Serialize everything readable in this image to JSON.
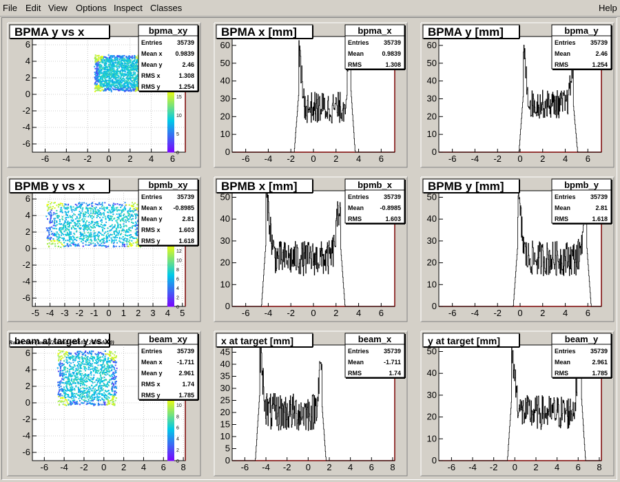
{
  "menu": {
    "file": "File",
    "edit": "Edit",
    "view": "View",
    "options": "Options",
    "inspect": "Inspect",
    "classes": "Classes",
    "help": "Help"
  },
  "canvas_title": "Raster Size (/adaql2/data2/e05102_2604.dat.0)",
  "colors": {
    "panel": "#d4d0c8",
    "frame": "#ffffff",
    "axis_frame_right": "#7a0000",
    "histogram": "#000000",
    "gradient_low": "#7d00ff",
    "gradient_mid": "#00c8e8",
    "gradient_high": "#ffff00"
  },
  "chart_data": [
    {
      "type": "heatmap",
      "title": "BPMA y vs x",
      "stats": {
        "name": "bpma_xy",
        "rows": [
          [
            "Entries",
            "35739"
          ],
          [
            "Mean x",
            "0.9839"
          ],
          [
            "Mean y",
            "2.46"
          ],
          [
            "RMS x",
            "1.308"
          ],
          [
            "RMS y",
            "1.254"
          ]
        ]
      },
      "xlim": [
        -7.2,
        7.2
      ],
      "ylim": [
        -7,
        7
      ],
      "xticks": [
        -6,
        -4,
        -2,
        0,
        2,
        4,
        6
      ],
      "yticks": [
        -6,
        -4,
        -2,
        0,
        2,
        4,
        6
      ],
      "region": {
        "x": [
          -1.3,
          3.3
        ],
        "y": [
          0.4,
          4.7
        ]
      },
      "colorbar": {
        "ticks": [
          0,
          5,
          10,
          15
        ]
      },
      "grid": true
    },
    {
      "type": "area",
      "title": "BPMA x [mm]",
      "stats": {
        "name": "bpma_x",
        "rows": [
          [
            "Entries",
            "35739"
          ],
          [
            "Mean",
            "0.9839"
          ],
          [
            "RMS",
            "1.308"
          ]
        ]
      },
      "xlim": [
        -7.2,
        7.2
      ],
      "ylim": [
        0,
        65
      ],
      "xticks": [
        -6,
        -4,
        -2,
        0,
        2,
        4,
        6
      ],
      "yticks": [
        0,
        10,
        20,
        30,
        40,
        50,
        60
      ],
      "profile": {
        "x0": -1.3,
        "x1": 3.3,
        "peak_left": 55,
        "peak_right": 62,
        "valley": 25,
        "noise": 9
      },
      "grid": false
    },
    {
      "type": "area",
      "title": "BPMA y [mm]",
      "stats": {
        "name": "bpma_y",
        "rows": [
          [
            "Entries",
            "35739"
          ],
          [
            "Mean",
            "2.46"
          ],
          [
            "RMS",
            "1.254"
          ]
        ]
      },
      "xlim": [
        -7.2,
        7.2
      ],
      "ylim": [
        0,
        65
      ],
      "xticks": [
        -6,
        -4,
        -2,
        0,
        2,
        4,
        6
      ],
      "yticks": [
        0,
        10,
        20,
        30,
        40,
        50,
        60
      ],
      "profile": {
        "x0": 0.3,
        "x1": 4.7,
        "peak_left": 56,
        "peak_right": 47,
        "valley": 27,
        "noise": 8
      },
      "grid": false
    },
    {
      "type": "heatmap",
      "title": "BPMB y vs x",
      "stats": {
        "name": "bpmb_xy",
        "rows": [
          [
            "Entries",
            "35739"
          ],
          [
            "Mean x",
            "-0.8985"
          ],
          [
            "Mean y",
            "2.81"
          ],
          [
            "RMS x",
            "1.603"
          ],
          [
            "RMS y",
            "1.618"
          ]
        ]
      },
      "xlim": [
        -5.2,
        5.2
      ],
      "ylim": [
        -7,
        7
      ],
      "xticks": [
        -5,
        -4,
        -3,
        -2,
        -1,
        0,
        1,
        2,
        3,
        4,
        5
      ],
      "yticks": [
        -6,
        -4,
        -2,
        0,
        2,
        4,
        6
      ],
      "region": {
        "x": [
          -4.2,
          2.4
        ],
        "y": [
          0.2,
          5.6
        ]
      },
      "colorbar": {
        "ticks": [
          0,
          2,
          4,
          6,
          8,
          10,
          12
        ]
      },
      "grid": true
    },
    {
      "type": "area",
      "title": "BPMB x [mm]",
      "stats": {
        "name": "bpmb_x",
        "rows": [
          [
            "Entries",
            "35739"
          ],
          [
            "Mean",
            "-0.8985"
          ],
          [
            "RMS",
            "1.603"
          ]
        ]
      },
      "xlim": [
        -7.2,
        7.2
      ],
      "ylim": [
        0,
        53
      ],
      "xticks": [
        -6,
        -4,
        -2,
        0,
        2,
        4,
        6
      ],
      "yticks": [
        0,
        10,
        20,
        30,
        40,
        50
      ],
      "profile": {
        "x0": -4.2,
        "x1": 2.4,
        "peak_left": 50,
        "peak_right": 47,
        "valley": 22,
        "noise": 8
      },
      "grid": false
    },
    {
      "type": "area",
      "title": "BPMB y [mm]",
      "stats": {
        "name": "bpmb_y",
        "rows": [
          [
            "Entries",
            "35739"
          ],
          [
            "Mean",
            "2.81"
          ],
          [
            "RMS",
            "1.618"
          ]
        ]
      },
      "xlim": [
        -7.2,
        7.2
      ],
      "ylim": [
        0,
        53
      ],
      "xticks": [
        -6,
        -4,
        -2,
        0,
        2,
        4,
        6
      ],
      "yticks": [
        0,
        10,
        20,
        30,
        40,
        50
      ],
      "profile": {
        "x0": -0.2,
        "x1": 5.9,
        "peak_left": 48,
        "peak_right": 47,
        "valley": 22,
        "noise": 8
      },
      "grid": false
    },
    {
      "type": "heatmap",
      "title": "beam at target y vs x",
      "stats": {
        "name": "beam_xy",
        "rows": [
          [
            "Entries",
            "35739"
          ],
          [
            "Mean x",
            "-1.711"
          ],
          [
            "Mean y",
            "2.961"
          ],
          [
            "RMS x",
            "1.74"
          ],
          [
            "RMS y",
            "1.785"
          ]
        ]
      },
      "xlim": [
        -7.2,
        8.2
      ],
      "ylim": [
        -7,
        7
      ],
      "xticks": [
        -6,
        -4,
        -2,
        0,
        2,
        4,
        6,
        8
      ],
      "yticks": [
        -6,
        -4,
        -2,
        0,
        2,
        4,
        6
      ],
      "region": {
        "x": [
          -4.6,
          1.3
        ],
        "y": [
          -0.3,
          6.3
        ]
      },
      "colorbar": {
        "ticks": [
          0,
          2,
          4,
          6,
          8,
          10
        ]
      },
      "grid": true
    },
    {
      "type": "area",
      "title": "x at target [mm]",
      "stats": {
        "name": "beam_x",
        "rows": [
          [
            "Entries",
            "35739"
          ],
          [
            "Mean",
            "-1.711"
          ],
          [
            "RMS",
            "1.74"
          ]
        ]
      },
      "xlim": [
        -7.2,
        8.2
      ],
      "ylim": [
        0,
        48
      ],
      "xticks": [
        -6,
        -4,
        -2,
        0,
        2,
        4,
        6,
        8
      ],
      "yticks": [
        0,
        5,
        10,
        15,
        20,
        25,
        30,
        35,
        40,
        45
      ],
      "profile": {
        "x0": -4.6,
        "x1": 1.3,
        "peak_left": 45,
        "peak_right": 40,
        "valley": 20,
        "noise": 8
      },
      "grid": false
    },
    {
      "type": "area",
      "title": "y at target [mm]",
      "stats": {
        "name": "beam_y",
        "rows": [
          [
            "Entries",
            "35739"
          ],
          [
            "Mean",
            "2.961"
          ],
          [
            "RMS",
            "1.785"
          ]
        ]
      },
      "xlim": [
        -7.2,
        8.2
      ],
      "ylim": [
        0,
        53
      ],
      "xticks": [
        -6,
        -4,
        -2,
        0,
        2,
        4,
        6,
        8
      ],
      "yticks": [
        0,
        10,
        20,
        30,
        40,
        50
      ],
      "profile": {
        "x0": -0.3,
        "x1": 6.3,
        "peak_left": 48,
        "peak_right": 51,
        "valley": 22,
        "noise": 8
      },
      "grid": false
    }
  ]
}
